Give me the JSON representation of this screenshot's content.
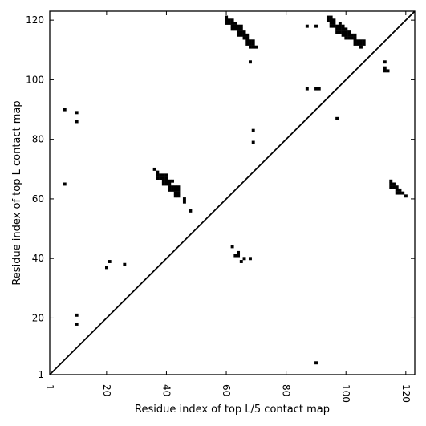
{
  "chart_data": {
    "type": "heatmap",
    "title": "",
    "xlabel": "Residue index of top L/5 contact map",
    "ylabel": "Residue index of top L contact map",
    "xlim": [
      1,
      123
    ],
    "ylim": [
      1,
      123
    ],
    "xticks": [
      1,
      20,
      40,
      60,
      80,
      100,
      120
    ],
    "yticks": [
      1,
      20,
      40,
      60,
      80,
      100,
      120
    ],
    "x_tick_rotation": "vertical",
    "diagonal": true,
    "cell_color": "#000000",
    "grid": false,
    "cells": [
      [
        6,
        90
      ],
      [
        6,
        65
      ],
      [
        10,
        89
      ],
      [
        10,
        86
      ],
      [
        10,
        21
      ],
      [
        10,
        18
      ],
      [
        20,
        37
      ],
      [
        21,
        39
      ],
      [
        26,
        38
      ],
      [
        36,
        70
      ],
      [
        37,
        69
      ],
      [
        37,
        68
      ],
      [
        37,
        67
      ],
      [
        38,
        68
      ],
      [
        38,
        67
      ],
      [
        39,
        68
      ],
      [
        39,
        67
      ],
      [
        39,
        66
      ],
      [
        39,
        65
      ],
      [
        40,
        68
      ],
      [
        40,
        67
      ],
      [
        40,
        66
      ],
      [
        40,
        65
      ],
      [
        41,
        66
      ],
      [
        41,
        65
      ],
      [
        41,
        64
      ],
      [
        41,
        63
      ],
      [
        42,
        66
      ],
      [
        42,
        64
      ],
      [
        42,
        63
      ],
      [
        43,
        64
      ],
      [
        43,
        63
      ],
      [
        43,
        62
      ],
      [
        43,
        61
      ],
      [
        44,
        64
      ],
      [
        44,
        63
      ],
      [
        44,
        62
      ],
      [
        44,
        61
      ],
      [
        46,
        60
      ],
      [
        46,
        59
      ],
      [
        48,
        56
      ],
      [
        60,
        121
      ],
      [
        60,
        120
      ],
      [
        60,
        119
      ],
      [
        61,
        120
      ],
      [
        61,
        119
      ],
      [
        62,
        120
      ],
      [
        62,
        119
      ],
      [
        62,
        118
      ],
      [
        62,
        117
      ],
      [
        63,
        119
      ],
      [
        63,
        118
      ],
      [
        63,
        117
      ],
      [
        64,
        118
      ],
      [
        64,
        117
      ],
      [
        64,
        116
      ],
      [
        64,
        115
      ],
      [
        65,
        118
      ],
      [
        65,
        117
      ],
      [
        65,
        116
      ],
      [
        65,
        115
      ],
      [
        66,
        116
      ],
      [
        66,
        115
      ],
      [
        66,
        114
      ],
      [
        67,
        115
      ],
      [
        67,
        114
      ],
      [
        67,
        113
      ],
      [
        67,
        112
      ],
      [
        68,
        113
      ],
      [
        68,
        112
      ],
      [
        68,
        111
      ],
      [
        68,
        106
      ],
      [
        69,
        113
      ],
      [
        69,
        112
      ],
      [
        69,
        111
      ],
      [
        70,
        111
      ],
      [
        69,
        83
      ],
      [
        69,
        79
      ],
      [
        62,
        44
      ],
      [
        63,
        41
      ],
      [
        64,
        42
      ],
      [
        64,
        41
      ],
      [
        65,
        39
      ],
      [
        66,
        40
      ],
      [
        68,
        40
      ],
      [
        87,
        118
      ],
      [
        87,
        97
      ],
      [
        90,
        118
      ],
      [
        90,
        97
      ],
      [
        91,
        97
      ],
      [
        90,
        5
      ],
      [
        94,
        121
      ],
      [
        94,
        120
      ],
      [
        95,
        121
      ],
      [
        95,
        120
      ],
      [
        95,
        119
      ],
      [
        95,
        118
      ],
      [
        96,
        120
      ],
      [
        96,
        119
      ],
      [
        96,
        118
      ],
      [
        97,
        118
      ],
      [
        97,
        117
      ],
      [
        97,
        116
      ],
      [
        97,
        87
      ],
      [
        98,
        119
      ],
      [
        98,
        118
      ],
      [
        98,
        117
      ],
      [
        98,
        116
      ],
      [
        99,
        118
      ],
      [
        99,
        117
      ],
      [
        99,
        116
      ],
      [
        99,
        115
      ],
      [
        100,
        117
      ],
      [
        100,
        116
      ],
      [
        100,
        115
      ],
      [
        100,
        114
      ],
      [
        101,
        116
      ],
      [
        101,
        115
      ],
      [
        101,
        114
      ],
      [
        102,
        115
      ],
      [
        102,
        114
      ],
      [
        103,
        115
      ],
      [
        103,
        114
      ],
      [
        103,
        113
      ],
      [
        103,
        112
      ],
      [
        104,
        113
      ],
      [
        104,
        112
      ],
      [
        105,
        113
      ],
      [
        105,
        112
      ],
      [
        105,
        111
      ],
      [
        106,
        113
      ],
      [
        106,
        112
      ],
      [
        113,
        106
      ],
      [
        113,
        104
      ],
      [
        113,
        103
      ],
      [
        114,
        103
      ],
      [
        115,
        66
      ],
      [
        115,
        65
      ],
      [
        115,
        64
      ],
      [
        116,
        65
      ],
      [
        116,
        64
      ],
      [
        117,
        64
      ],
      [
        117,
        63
      ],
      [
        117,
        62
      ],
      [
        118,
        63
      ],
      [
        118,
        62
      ],
      [
        119,
        62
      ],
      [
        120,
        61
      ]
    ]
  }
}
